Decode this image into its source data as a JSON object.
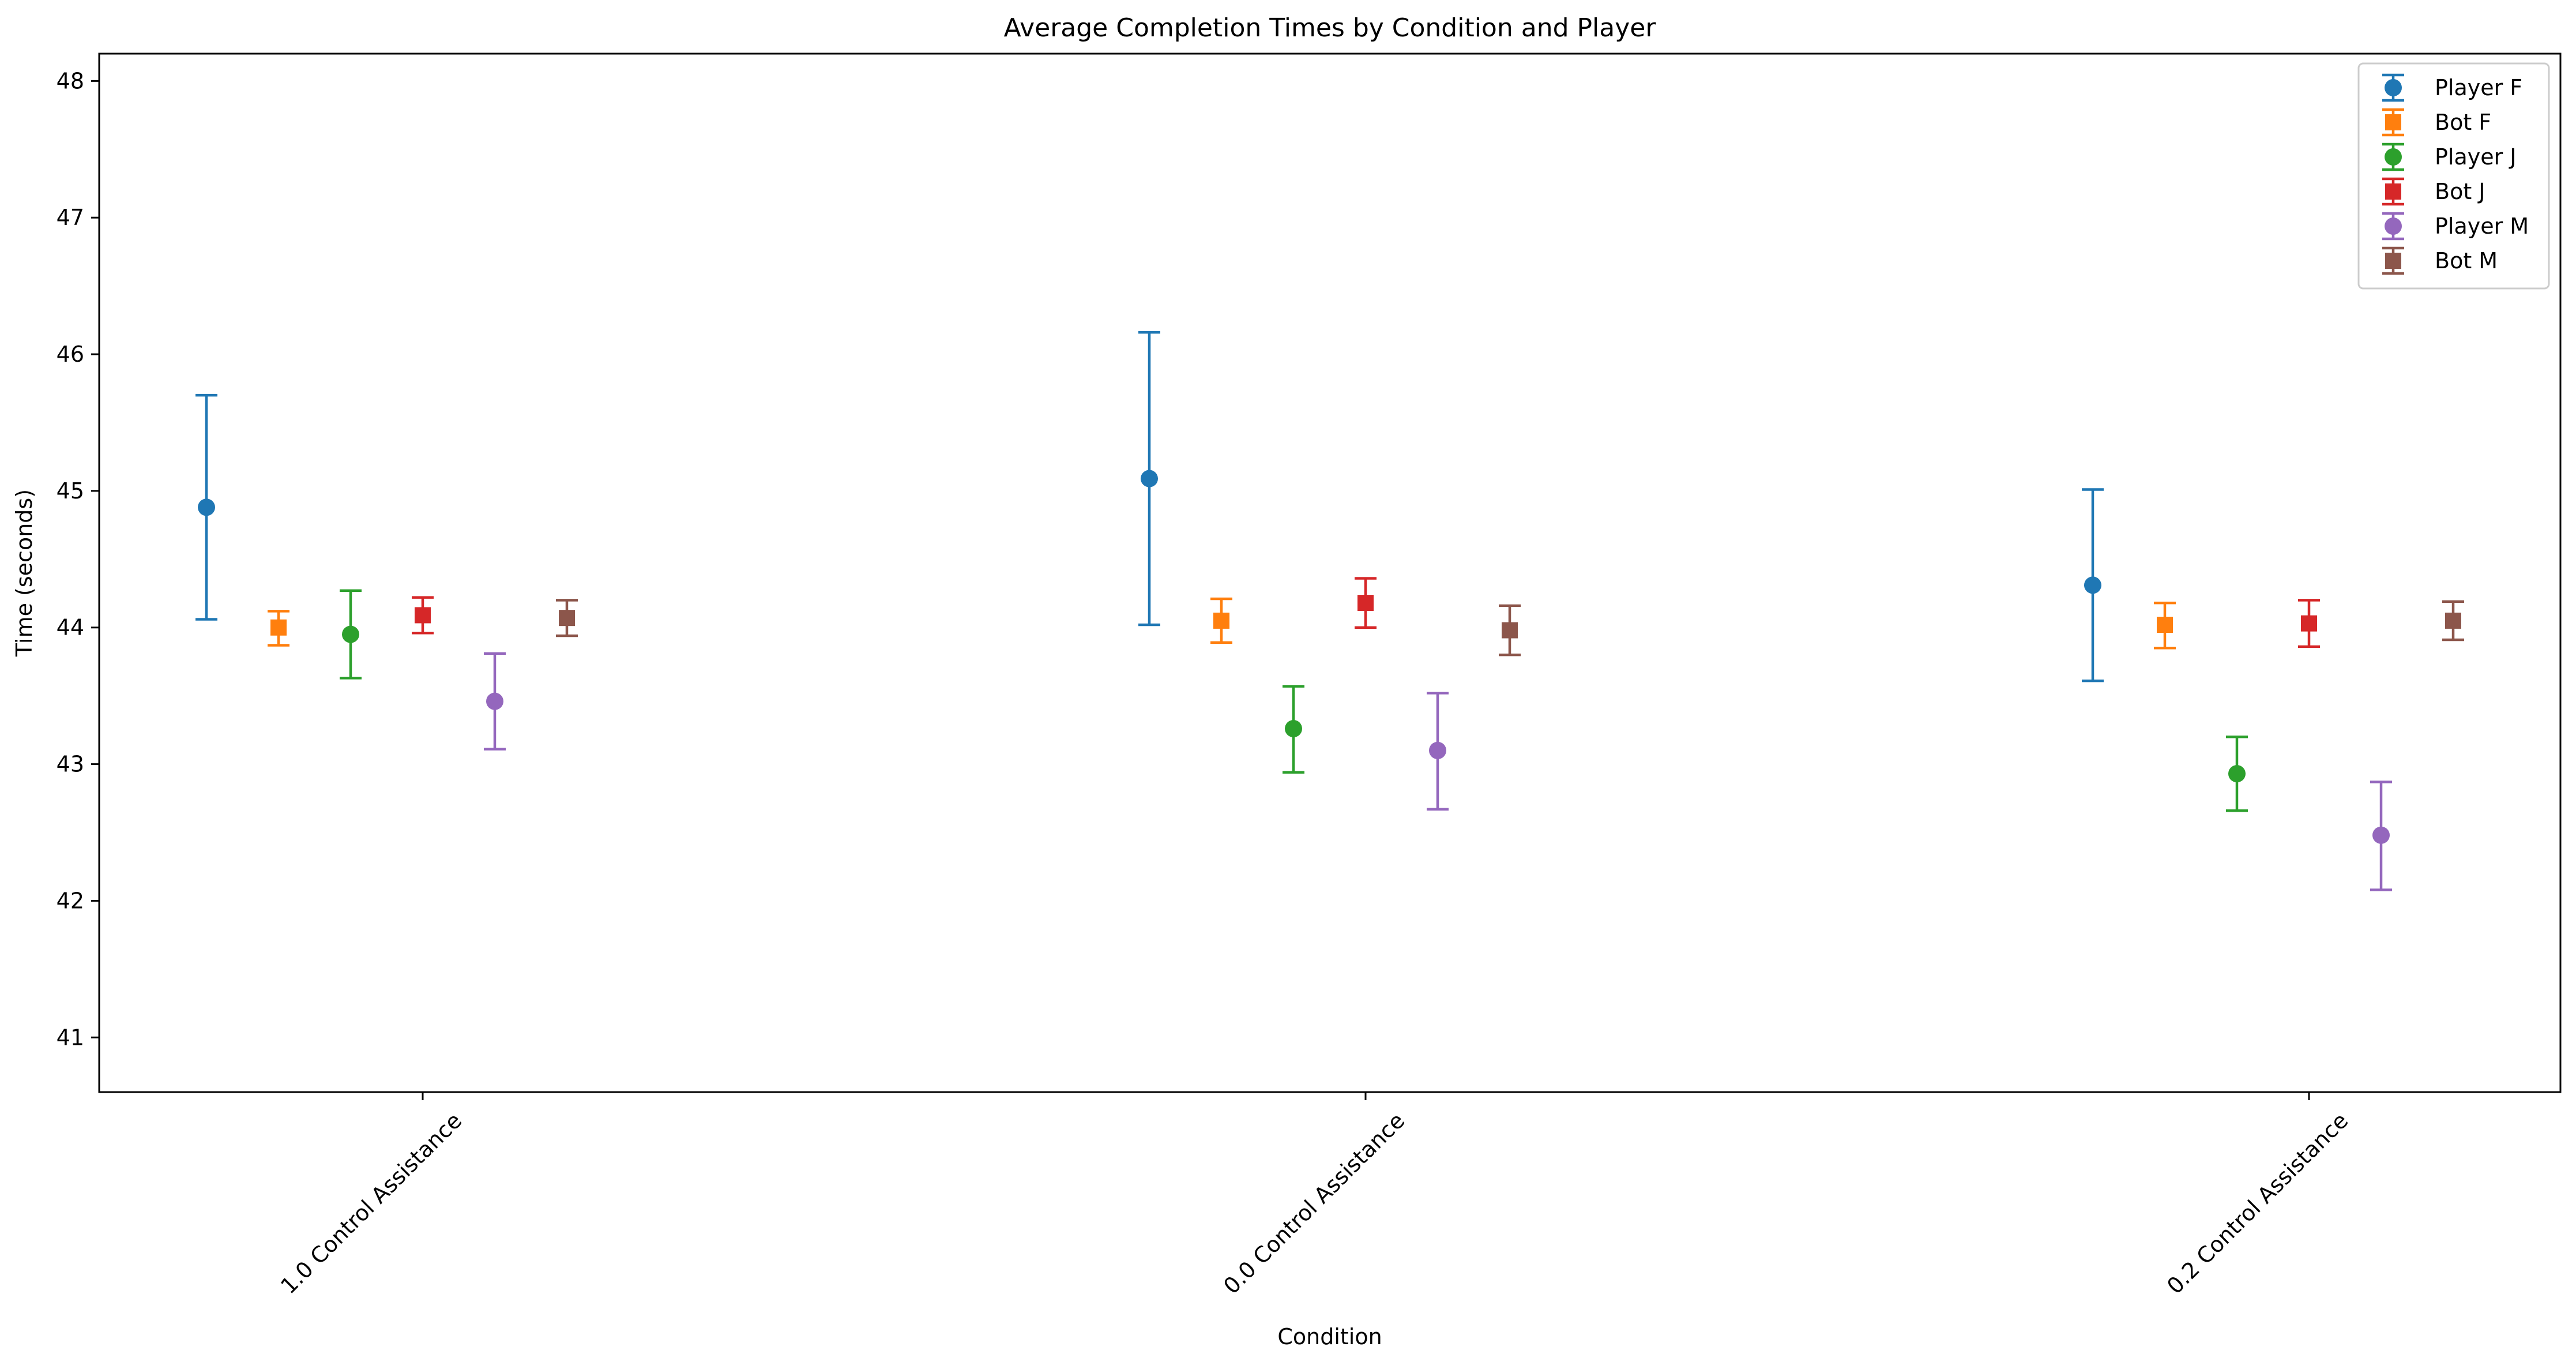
{
  "chart_data": {
    "type": "scatter",
    "title": "Average Completion Times by Condition and Player",
    "xlabel": "Condition",
    "ylabel": "Time (seconds)",
    "categories": [
      "1.0 Control Assistance",
      "0.0 Control Assistance",
      "0.2 Control Assistance"
    ],
    "ylim": [
      40.6,
      48.2
    ],
    "yticks": [
      "41",
      "42",
      "43",
      "44",
      "45",
      "46",
      "47",
      "48"
    ],
    "grid": false,
    "legend_position": "top-right",
    "series": [
      {
        "name": "Player F",
        "marker": "circle",
        "color": "#1f77b4",
        "values": [
          44.88,
          45.09,
          44.31
        ],
        "err_low": [
          44.06,
          44.02,
          43.61
        ],
        "err_high": [
          45.7,
          46.16,
          45.01
        ]
      },
      {
        "name": "Bot F",
        "marker": "square",
        "color": "#ff7f0e",
        "values": [
          44.0,
          44.05,
          44.02
        ],
        "err_low": [
          43.87,
          43.89,
          43.85
        ],
        "err_high": [
          44.12,
          44.21,
          44.18
        ]
      },
      {
        "name": "Player J",
        "marker": "circle",
        "color": "#2ca02c",
        "values": [
          43.95,
          43.26,
          42.93
        ],
        "err_low": [
          43.63,
          42.94,
          42.66
        ],
        "err_high": [
          44.27,
          43.57,
          43.2
        ]
      },
      {
        "name": "Bot J",
        "marker": "square",
        "color": "#d62728",
        "values": [
          44.09,
          44.18,
          44.03
        ],
        "err_low": [
          43.96,
          44.0,
          43.86
        ],
        "err_high": [
          44.22,
          44.36,
          44.2
        ]
      },
      {
        "name": "Player M",
        "marker": "circle",
        "color": "#9467bd",
        "values": [
          43.46,
          43.1,
          42.48
        ],
        "err_low": [
          43.11,
          42.67,
          42.08
        ],
        "err_high": [
          43.81,
          43.52,
          42.87
        ]
      },
      {
        "name": "Bot M",
        "marker": "square",
        "color": "#8c564b",
        "values": [
          44.07,
          43.98,
          44.05
        ],
        "err_low": [
          43.94,
          43.8,
          43.91
        ],
        "err_high": [
          44.2,
          44.16,
          44.19
        ]
      }
    ]
  }
}
